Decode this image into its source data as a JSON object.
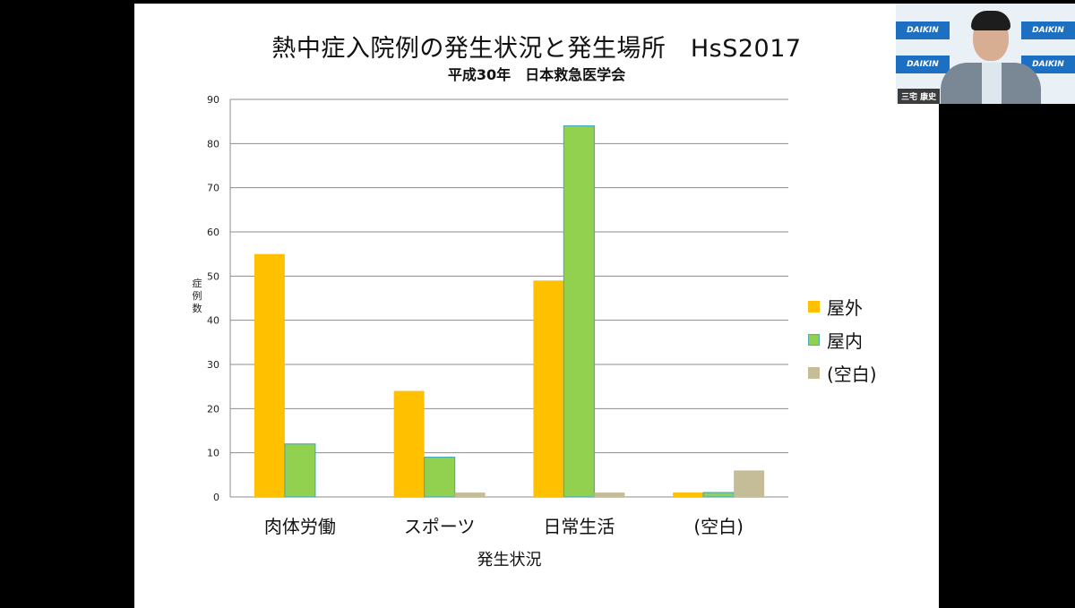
{
  "slide": {
    "title": "熱中症入院例の発生状況と発生場所　HsS2017",
    "subtitle": "平成30年　日本救急医学会"
  },
  "chart_data": {
    "type": "bar",
    "categories": [
      "肉体労働",
      "スポーツ",
      "日常生活",
      "(空白)"
    ],
    "series": [
      {
        "name": "屋外",
        "values": [
          55,
          24,
          49,
          1
        ],
        "color": "#ffc000"
      },
      {
        "name": "屋内",
        "values": [
          12,
          9,
          84,
          1
        ],
        "color": "#92d050",
        "stroke": "#4bacc6"
      },
      {
        "name": "(空白)",
        "values": [
          0,
          1,
          1,
          6
        ],
        "color": "#c4bd97"
      }
    ],
    "xlabel": "発生状況",
    "ylabel": "症例数",
    "ylim": [
      0,
      90
    ],
    "yticks": [
      0,
      10,
      20,
      30,
      40,
      50,
      60,
      70,
      80,
      90
    ],
    "grid": true,
    "legend": "right"
  },
  "video": {
    "participant_name": "三宅 康史",
    "brand": "DAIKIN"
  }
}
